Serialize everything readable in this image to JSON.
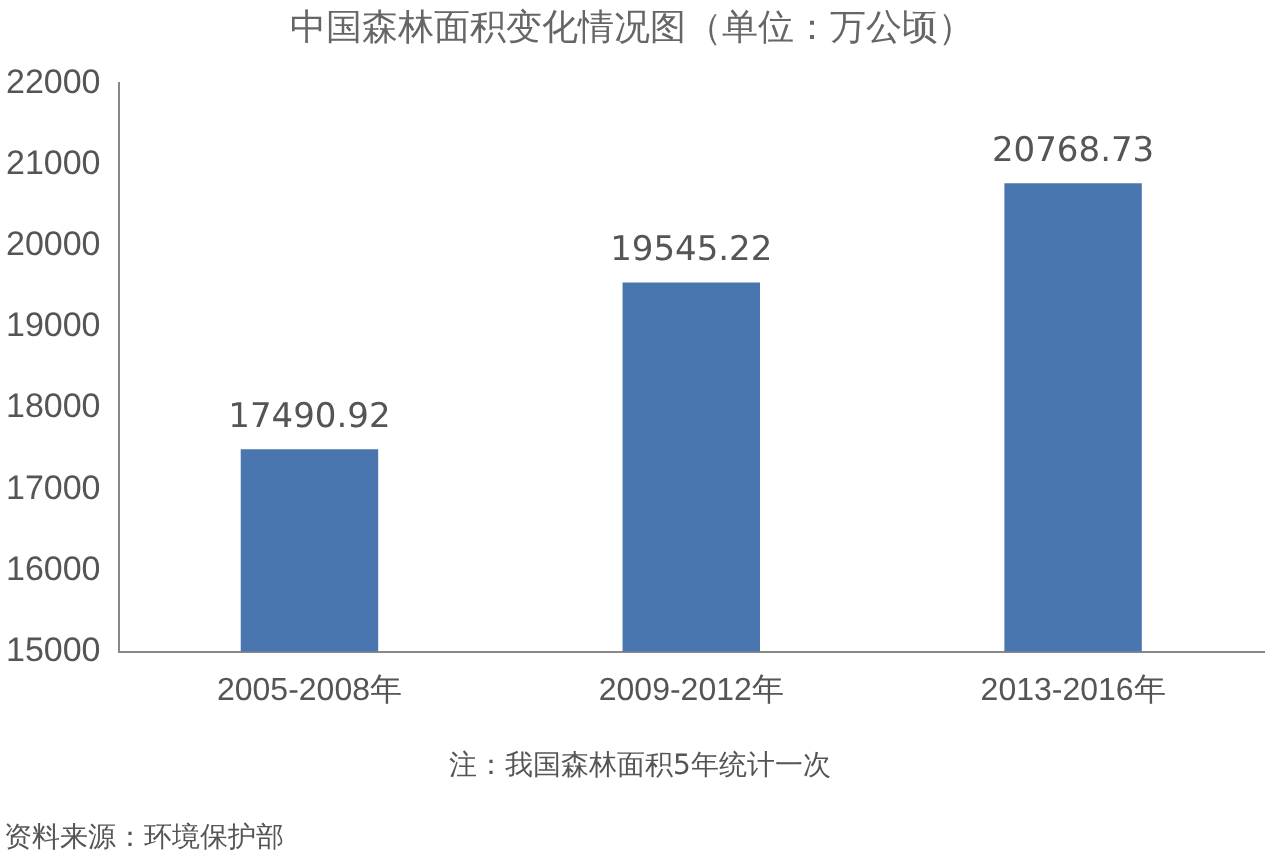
{
  "chart_data": {
    "type": "bar",
    "title": "中国森林面积变化情况图（单位：万公顷）",
    "categories": [
      "2005-2008年",
      "2009-2012年",
      "2013-2016年"
    ],
    "values": [
      17490.92,
      19545.22,
      20768.73
    ],
    "color": "#4a76b0",
    "ylim": [
      15000,
      22000
    ],
    "yticks": [
      15000,
      16000,
      17000,
      18000,
      19000,
      20000,
      21000,
      22000
    ],
    "grid": false,
    "legend": false,
    "data_labels": true,
    "annotations": [
      "注：我国森林面积5年统计一次",
      "资料来源：环境保护部"
    ]
  }
}
